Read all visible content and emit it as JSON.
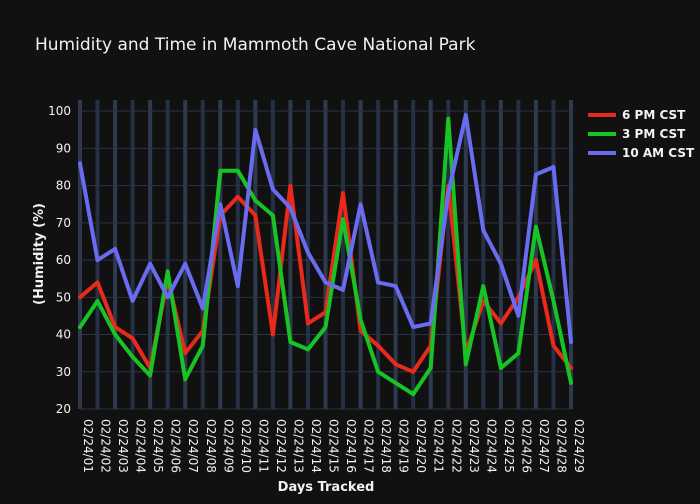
{
  "chart_data": {
    "type": "line",
    "title": "Humidity and Time in Mammoth Cave National Park",
    "xlabel": "Days Tracked",
    "ylabel": "(Humidity (%)",
    "ylim": [
      20,
      103
    ],
    "yticks": [
      20,
      30,
      40,
      50,
      60,
      70,
      80,
      90,
      100
    ],
    "grid": true,
    "legend_position": "top-right",
    "categories": [
      "02/24/01",
      "02/24/02",
      "02/24/03",
      "02/24/04",
      "02/24/05",
      "02/24/06",
      "02/24/07",
      "02/24/08",
      "02/24/09",
      "02/24/10",
      "02/24/11",
      "02/24/12",
      "02/24/13",
      "02/24/14",
      "02/24/15",
      "02/24/16",
      "02/24/17",
      "02/24/18",
      "02/24/19",
      "02/24/20",
      "02/24/21",
      "02/24/22",
      "02/24/23",
      "02/24/24",
      "02/24/25",
      "02/24/26",
      "02/24/27",
      "02/24/28",
      "02/24/29"
    ],
    "series": [
      {
        "name": "6 PM CST",
        "color": "#e8291c",
        "values": [
          50,
          54,
          42,
          39,
          31,
          55,
          35,
          41,
          72,
          77,
          72,
          40,
          80,
          43,
          46,
          78,
          41,
          37,
          32,
          30,
          37,
          80,
          35,
          49,
          43,
          50,
          60,
          37,
          31
        ]
      },
      {
        "name": "3 PM CST",
        "color": "#17c424",
        "values": [
          42,
          49,
          40,
          34,
          29,
          57,
          28,
          37,
          84,
          84,
          76,
          72,
          38,
          36,
          42,
          71,
          44,
          30,
          27,
          24,
          31,
          98,
          32,
          53,
          31,
          35,
          69,
          49,
          27
        ]
      },
      {
        "name": "10 AM CST",
        "color": "#6a6cf0",
        "values": [
          86,
          60,
          63,
          49,
          59,
          50,
          59,
          47,
          75,
          53,
          95,
          79,
          74,
          62,
          54,
          52,
          75,
          54,
          53,
          42,
          43,
          78,
          99,
          68,
          59,
          45,
          83,
          85,
          38
        ]
      }
    ]
  }
}
